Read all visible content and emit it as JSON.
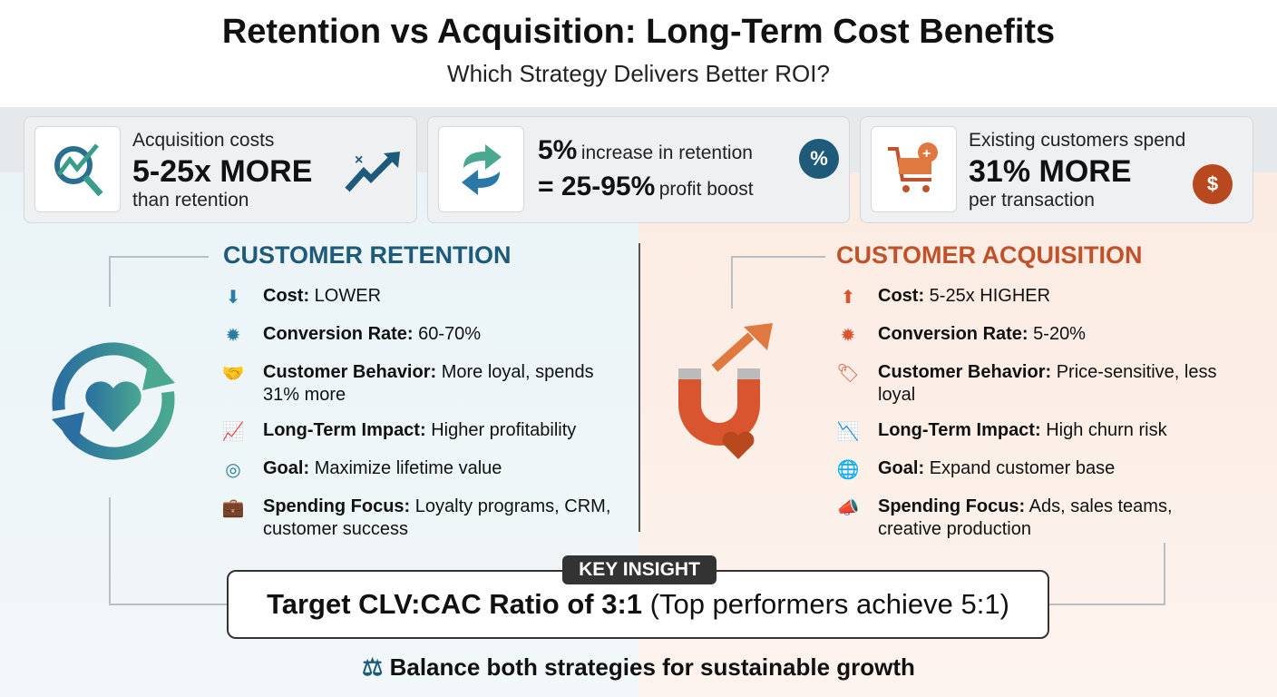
{
  "header": {
    "title": "Retention vs Acquisition: Long-Term Cost Benefits",
    "subtitle": "Which Strategy Delivers Better ROI?"
  },
  "stats": [
    {
      "line1": "Acquisition costs",
      "big": "5-25x MORE",
      "line3": "than retention",
      "icon": "search-growth-icon",
      "badge_icon": "x-arrow-up-icon"
    },
    {
      "big1": "5%",
      "line1": "increase in retention",
      "big2": "= 25-95%",
      "line2": "profit boost",
      "icon": "refresh-icon",
      "badge": "%"
    },
    {
      "line1": "Existing customers spend",
      "big": "31% MORE",
      "line3": "per transaction",
      "icon": "cart-plus-icon",
      "badge": "$"
    }
  ],
  "retention": {
    "title": "CUSTOMER RETENTION",
    "color": "#1e5a7a",
    "items": [
      {
        "label": "Cost:",
        "value": "LOWER",
        "icon": "dollar-down-icon"
      },
      {
        "label": "Conversion Rate:",
        "value": "60-70%",
        "icon": "percent-badge-icon"
      },
      {
        "label": "Customer Behavior:",
        "value": "More loyal, spends 31% more",
        "icon": "handshake-icon"
      },
      {
        "label": "Long-Term Impact:",
        "value": "Higher profitability",
        "icon": "growth-chart-icon"
      },
      {
        "label": "Goal:",
        "value": "Maximize lifetime value",
        "icon": "target-icon"
      },
      {
        "label": "Spending Focus:",
        "value": "Loyalty programs, CRM, customer success",
        "icon": "briefcase-megaphone-icon"
      }
    ]
  },
  "acquisition": {
    "title": "CUSTOMER ACQUISITION",
    "color": "#c0522a",
    "items": [
      {
        "label": "Cost:",
        "value": "5-25x HIGHER",
        "icon": "arrow-up-cost-icon"
      },
      {
        "label": "Conversion Rate:",
        "value": "5-20%",
        "icon": "percent-badge-icon"
      },
      {
        "label": "Customer Behavior:",
        "value": "Price-sensitive, less loyal",
        "icon": "price-tag-icon"
      },
      {
        "label": "Long-Term Impact:",
        "value": "High churn risk",
        "icon": "decline-chart-icon"
      },
      {
        "label": "Goal:",
        "value": "Expand customer base",
        "icon": "globe-icon"
      },
      {
        "label": "Spending Focus:",
        "value": "Ads, sales teams, creative production",
        "icon": "megaphone-icon"
      }
    ]
  },
  "insight": {
    "label": "KEY INSIGHT",
    "bold": "Target CLV:CAC Ratio of 3:1",
    "rest": "(Top performers achieve 5:1)"
  },
  "footer": {
    "text": "Balance both strategies for sustainable growth"
  }
}
